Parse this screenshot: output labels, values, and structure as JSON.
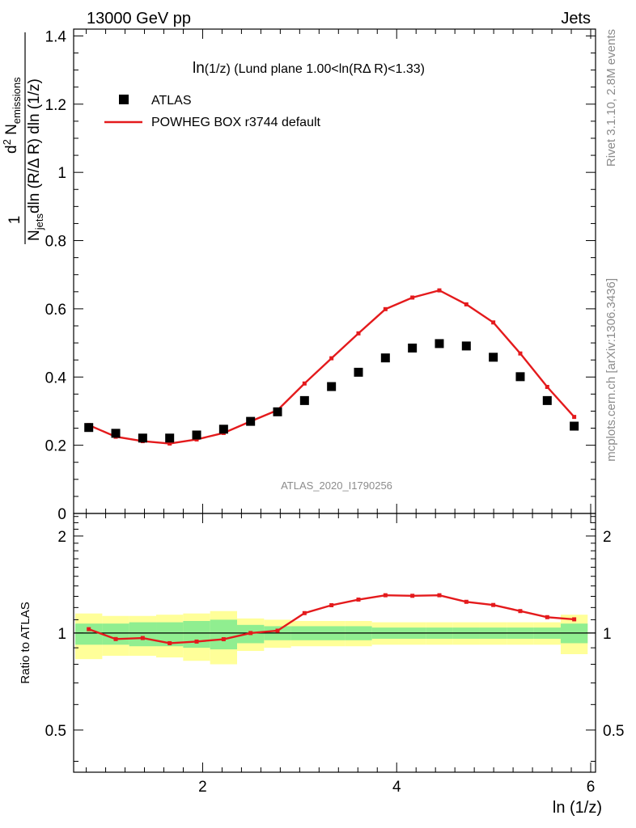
{
  "header": {
    "left": "13000 GeV pp",
    "right": "Jets"
  },
  "side": {
    "rivet": "Rivet 3.1.10,  2.8M events",
    "mcplots": "mcplots.cern.ch [arXiv:1306.3436]"
  },
  "watermark": "ATLAS_2020_I1790256",
  "legend": {
    "data": "ATLAS",
    "mc": "POWHEG BOX r3744 default"
  },
  "colors": {
    "mc": "#e41a1c",
    "data": "#000000",
    "band_inner": "#90ee90",
    "band_outer": "#ffff99"
  },
  "chart_data": [
    {
      "type": "scatter",
      "title": "ln(1/z) (Lund plane 1.00<ln(RΔ R)<1.33)",
      "title_parts": [
        "ln",
        "(1/z)",
        " (Lund plane 1.00<ln(RΔ R)<1.33)"
      ],
      "xlabel": "ln (1/z)",
      "ylabel_parts": [
        "1",
        "N",
        "jets",
        "dln (R/Δ R) dln (1/z)",
        "d",
        "2",
        " N",
        "emissions"
      ],
      "xlim": [
        0.67,
        6.05
      ],
      "ylim": [
        0,
        1.42
      ],
      "yticks": [
        0,
        0.2,
        0.4,
        0.6,
        0.8,
        1,
        1.2,
        1.4
      ],
      "ytick_labels": [
        "0",
        "0.2",
        "0.4",
        "0.6",
        "0.8",
        "1",
        "1.2",
        "1.4"
      ],
      "xticks": [
        2,
        4,
        6
      ],
      "xtick_labels": [
        "2",
        "4",
        "6"
      ],
      "x": [
        0.826,
        1.104,
        1.382,
        1.66,
        1.938,
        2.216,
        2.494,
        2.772,
        3.05,
        3.328,
        3.606,
        3.884,
        4.162,
        4.44,
        4.718,
        4.996,
        5.274,
        5.552,
        5.83
      ],
      "series": [
        {
          "name": "ATLAS",
          "values": [
            0.252,
            0.235,
            0.221,
            0.221,
            0.23,
            0.247,
            0.27,
            0.298,
            0.331,
            0.372,
            0.414,
            0.456,
            0.485,
            0.498,
            0.491,
            0.458,
            0.401,
            0.331,
            0.256
          ]
        },
        {
          "name": "POWHEG BOX r3744 default",
          "values": [
            0.259,
            0.225,
            0.212,
            0.205,
            0.217,
            0.236,
            0.27,
            0.303,
            0.381,
            0.455,
            0.528,
            0.599,
            0.633,
            0.654,
            0.613,
            0.56,
            0.469,
            0.371,
            0.283
          ]
        }
      ]
    },
    {
      "type": "line",
      "ylabel": "Ratio to ATLAS",
      "ylim": [
        0.37,
        2.35
      ],
      "yticks": [
        0.5,
        1,
        2
      ],
      "ytick_labels": [
        "0.5",
        "1",
        "2"
      ],
      "series": [
        {
          "name": "POWHEG BOX r3744 default",
          "values": [
            1.028,
            0.958,
            0.965,
            0.93,
            0.941,
            0.957,
            1.0,
            1.017,
            1.153,
            1.22,
            1.27,
            1.31,
            1.305,
            1.31,
            1.25,
            1.222,
            1.17,
            1.12,
            1.103
          ]
        }
      ],
      "band_inner": [
        [
          0.92,
          1.07
        ],
        [
          0.92,
          1.07
        ],
        [
          0.91,
          1.08
        ],
        [
          0.91,
          1.08
        ],
        [
          0.9,
          1.09
        ],
        [
          0.89,
          1.1
        ],
        [
          0.93,
          1.06
        ],
        [
          0.95,
          1.05
        ],
        [
          0.95,
          1.05
        ],
        [
          0.95,
          1.05
        ],
        [
          0.95,
          1.05
        ],
        [
          0.96,
          1.04
        ],
        [
          0.96,
          1.04
        ],
        [
          0.96,
          1.04
        ],
        [
          0.96,
          1.04
        ],
        [
          0.96,
          1.04
        ],
        [
          0.96,
          1.04
        ],
        [
          0.96,
          1.04
        ],
        [
          0.93,
          1.07
        ]
      ],
      "band_outer": [
        [
          0.83,
          1.15
        ],
        [
          0.85,
          1.13
        ],
        [
          0.85,
          1.13
        ],
        [
          0.84,
          1.14
        ],
        [
          0.82,
          1.15
        ],
        [
          0.8,
          1.17
        ],
        [
          0.88,
          1.11
        ],
        [
          0.9,
          1.1
        ],
        [
          0.91,
          1.09
        ],
        [
          0.91,
          1.09
        ],
        [
          0.91,
          1.09
        ],
        [
          0.92,
          1.08
        ],
        [
          0.92,
          1.08
        ],
        [
          0.92,
          1.08
        ],
        [
          0.92,
          1.08
        ],
        [
          0.92,
          1.08
        ],
        [
          0.92,
          1.08
        ],
        [
          0.92,
          1.08
        ],
        [
          0.86,
          1.14
        ]
      ]
    }
  ]
}
